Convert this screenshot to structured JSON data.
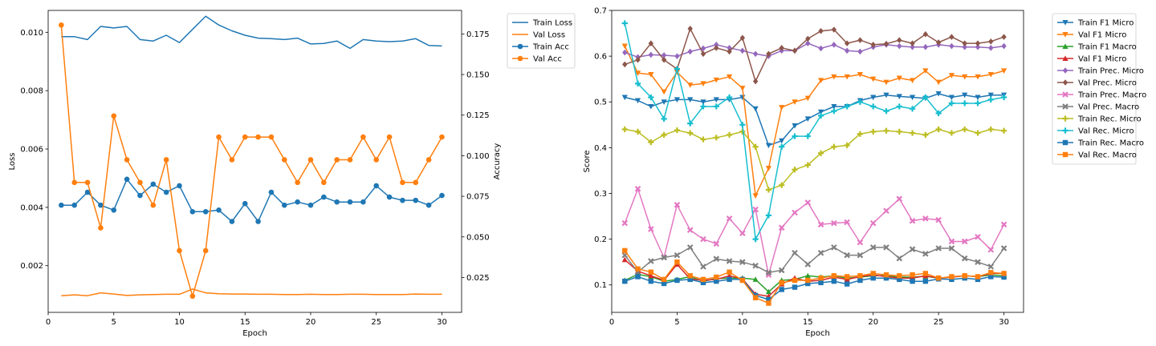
{
  "chart_data": [
    {
      "type": "line",
      "xlabel": "Epoch",
      "ylabel": "Loss",
      "y2label": "Accuracy",
      "x": [
        1,
        2,
        3,
        4,
        5,
        6,
        7,
        8,
        9,
        10,
        11,
        12,
        13,
        14,
        15,
        16,
        17,
        18,
        19,
        20,
        21,
        22,
        23,
        24,
        25,
        26,
        27,
        28,
        29,
        30
      ],
      "xlim": [
        0,
        31.5
      ],
      "xticks": [
        "0",
        "5",
        "10",
        "15",
        "20",
        "25",
        "30"
      ],
      "ylim": [
        0.0004,
        0.01075
      ],
      "yticks": [
        "0.002",
        "0.004",
        "0.006",
        "0.008",
        "0.010"
      ],
      "y2lim": [
        0.0035,
        0.1895
      ],
      "y2ticks": [
        "0.025",
        "0.050",
        "0.075",
        "0.100",
        "0.125",
        "0.150",
        "0.175"
      ],
      "legend_position": "outside-right",
      "series": [
        {
          "name": "Train Loss",
          "axis": "left",
          "color": "#1f77b4",
          "marker": "none",
          "values": [
            0.00985,
            0.00985,
            0.00975,
            0.0102,
            0.01015,
            0.0102,
            0.00975,
            0.0097,
            0.0099,
            0.00965,
            0.0101,
            0.01055,
            0.01025,
            0.01005,
            0.0099,
            0.0098,
            0.00978,
            0.00975,
            0.0098,
            0.0096,
            0.00962,
            0.0097,
            0.00945,
            0.00975,
            0.0097,
            0.00968,
            0.0097,
            0.00978,
            0.00955,
            0.00953
          ]
        },
        {
          "name": "Val Loss",
          "axis": "left",
          "color": "#ff7f0e",
          "marker": "none",
          "values": [
            0.00097,
            0.001,
            0.00097,
            0.00107,
            0.00103,
            0.00098,
            0.001,
            0.00101,
            0.00102,
            0.00102,
            0.0012,
            0.00107,
            0.00104,
            0.00103,
            0.00103,
            0.00102,
            0.00102,
            0.00101,
            0.00101,
            0.00102,
            0.00101,
            0.00101,
            0.00102,
            0.00102,
            0.00101,
            0.00101,
            0.00101,
            0.00103,
            0.00102,
            0.00102
          ]
        },
        {
          "name": "Train Acc",
          "axis": "right",
          "color": "#1f77b4",
          "marker": "circle",
          "values": [
            0.0695,
            0.0695,
            0.0775,
            0.0695,
            0.0665,
            0.0855,
            0.0755,
            0.0825,
            0.0775,
            0.0815,
            0.0655,
            0.0655,
            0.0665,
            0.0595,
            0.0705,
            0.0595,
            0.0775,
            0.0695,
            0.0715,
            0.0695,
            0.0745,
            0.0715,
            0.0715,
            0.0715,
            0.0815,
            0.0745,
            0.0725,
            0.0725,
            0.0695,
            0.0755
          ]
        },
        {
          "name": "Val Acc",
          "axis": "right",
          "color": "#ff7f0e",
          "marker": "circle",
          "values": [
            0.1805,
            0.0835,
            0.0835,
            0.0555,
            0.1245,
            0.0975,
            0.0835,
            0.0695,
            0.0975,
            0.0415,
            0.0135,
            0.0415,
            0.1115,
            0.0975,
            0.1115,
            0.1115,
            0.1115,
            0.0975,
            0.0835,
            0.0975,
            0.0835,
            0.0975,
            0.0975,
            0.1115,
            0.0975,
            0.1115,
            0.0835,
            0.0835,
            0.0975,
            0.1115
          ]
        }
      ]
    },
    {
      "type": "line",
      "xlabel": "Epoch",
      "ylabel": "Score",
      "x": [
        1,
        2,
        3,
        4,
        5,
        6,
        7,
        8,
        9,
        10,
        11,
        12,
        13,
        14,
        15,
        16,
        17,
        18,
        19,
        20,
        21,
        22,
        23,
        24,
        25,
        26,
        27,
        28,
        29,
        30
      ],
      "xlim": [
        0,
        31.5
      ],
      "xticks": [
        "0",
        "5",
        "10",
        "15",
        "20",
        "25",
        "30"
      ],
      "ylim": [
        0.04,
        0.7
      ],
      "yticks": [
        "0.1",
        "0.2",
        "0.3",
        "0.4",
        "0.5",
        "0.6",
        "0.7"
      ],
      "legend_position": "outside-right",
      "series": [
        {
          "name": "Train F1 Micro",
          "color": "#1f77b4",
          "marker": "triangle-down",
          "values": [
            0.51,
            0.503,
            0.49,
            0.5,
            0.505,
            0.505,
            0.5,
            0.505,
            0.505,
            0.51,
            0.485,
            0.405,
            0.415,
            0.448,
            0.463,
            0.478,
            0.49,
            0.49,
            0.503,
            0.51,
            0.515,
            0.512,
            0.51,
            0.508,
            0.518,
            0.51,
            0.515,
            0.51,
            0.515,
            0.515
          ]
        },
        {
          "name": "Val F1 Micro",
          "color": "#ff7f0e",
          "marker": "triangle-down",
          "values": [
            0.622,
            0.563,
            0.56,
            0.522,
            0.565,
            0.537,
            0.54,
            0.548,
            0.555,
            0.53,
            0.295,
            0.355,
            0.488,
            0.5,
            0.508,
            0.547,
            0.555,
            0.555,
            0.56,
            0.55,
            0.543,
            0.552,
            0.547,
            0.568,
            0.543,
            0.558,
            0.555,
            0.555,
            0.56,
            0.568
          ]
        },
        {
          "name": "Train F1 Macro",
          "color": "#2ca02c",
          "marker": "triangle-up",
          "values": [
            0.11,
            0.123,
            0.118,
            0.108,
            0.112,
            0.118,
            0.108,
            0.114,
            0.115,
            0.115,
            0.112,
            0.085,
            0.11,
            0.112,
            0.12,
            0.117,
            0.12,
            0.115,
            0.117,
            0.12,
            0.12,
            0.117,
            0.117,
            0.119,
            0.115,
            0.117,
            0.12,
            0.118,
            0.122,
            0.12
          ]
        },
        {
          "name": "Val F1 Micro",
          "color": "#d62728",
          "marker": "triangle-up",
          "values": [
            0.155,
            0.13,
            0.12,
            0.11,
            0.145,
            0.113,
            0.11,
            0.112,
            0.12,
            0.113,
            0.08,
            0.075,
            0.102,
            0.115,
            0.108,
            0.11,
            0.117,
            0.112,
            0.118,
            0.122,
            0.118,
            0.115,
            0.115,
            0.12,
            0.115,
            0.117,
            0.12,
            0.118,
            0.125,
            0.125
          ]
        },
        {
          "name": "Train Prec. Micro",
          "color": "#9467bd",
          "marker": "diamond",
          "values": [
            0.608,
            0.598,
            0.603,
            0.602,
            0.6,
            0.61,
            0.617,
            0.625,
            0.618,
            0.612,
            0.605,
            0.6,
            0.612,
            0.612,
            0.628,
            0.617,
            0.625,
            0.612,
            0.61,
            0.62,
            0.625,
            0.622,
            0.62,
            0.62,
            0.625,
            0.622,
            0.62,
            0.62,
            0.618,
            0.622
          ]
        },
        {
          "name": "Val Prec. Micro",
          "color": "#8c564b",
          "marker": "diamond",
          "values": [
            0.582,
            0.592,
            0.628,
            0.592,
            0.572,
            0.66,
            0.605,
            0.618,
            0.61,
            0.64,
            0.545,
            0.605,
            0.618,
            0.612,
            0.638,
            0.655,
            0.658,
            0.628,
            0.635,
            0.625,
            0.627,
            0.635,
            0.628,
            0.648,
            0.63,
            0.642,
            0.628,
            0.628,
            0.632,
            0.642
          ]
        },
        {
          "name": "Train Prec. Macro",
          "color": "#e377c2",
          "marker": "cross",
          "values": [
            0.235,
            0.31,
            0.222,
            0.16,
            0.275,
            0.22,
            0.2,
            0.19,
            0.245,
            0.213,
            0.265,
            0.122,
            0.225,
            0.258,
            0.28,
            0.232,
            0.235,
            0.237,
            0.193,
            0.235,
            0.262,
            0.288,
            0.24,
            0.245,
            0.242,
            0.195,
            0.195,
            0.205,
            0.177,
            0.232
          ]
        },
        {
          "name": "Val Prec. Macro",
          "color": "#7f7f7f",
          "marker": "cross",
          "values": [
            0.165,
            0.128,
            0.152,
            0.16,
            0.165,
            0.182,
            0.14,
            0.157,
            0.152,
            0.15,
            0.142,
            0.127,
            0.132,
            0.17,
            0.145,
            0.17,
            0.182,
            0.165,
            0.165,
            0.182,
            0.182,
            0.158,
            0.178,
            0.168,
            0.18,
            0.18,
            0.158,
            0.15,
            0.14,
            0.18
          ]
        },
        {
          "name": "Train Rec. Micro",
          "color": "#bcbd22",
          "marker": "plus",
          "values": [
            0.44,
            0.435,
            0.412,
            0.428,
            0.438,
            0.432,
            0.418,
            0.422,
            0.428,
            0.435,
            0.402,
            0.308,
            0.318,
            0.352,
            0.362,
            0.388,
            0.402,
            0.405,
            0.43,
            0.435,
            0.437,
            0.435,
            0.432,
            0.428,
            0.44,
            0.432,
            0.44,
            0.432,
            0.44,
            0.437
          ]
        },
        {
          "name": "Val Rec. Micro",
          "color": "#17becf",
          "marker": "plus",
          "values": [
            0.672,
            0.54,
            0.51,
            0.463,
            0.572,
            0.453,
            0.49,
            0.49,
            0.51,
            0.45,
            0.2,
            0.252,
            0.402,
            0.425,
            0.425,
            0.47,
            0.48,
            0.49,
            0.5,
            0.49,
            0.48,
            0.49,
            0.485,
            0.51,
            0.475,
            0.497,
            0.497,
            0.497,
            0.505,
            0.51
          ]
        },
        {
          "name": "Train Rec. Macro",
          "color": "#1f77b4",
          "marker": "square",
          "values": [
            0.108,
            0.118,
            0.108,
            0.103,
            0.11,
            0.112,
            0.105,
            0.108,
            0.112,
            0.112,
            0.077,
            0.068,
            0.09,
            0.095,
            0.103,
            0.105,
            0.108,
            0.102,
            0.11,
            0.115,
            0.115,
            0.112,
            0.108,
            0.108,
            0.113,
            0.112,
            0.115,
            0.112,
            0.118,
            0.117
          ]
        },
        {
          "name": "Val Rec. Macro",
          "color": "#ff7f0e",
          "marker": "square",
          "values": [
            0.175,
            0.135,
            0.128,
            0.112,
            0.15,
            0.12,
            0.112,
            0.117,
            0.128,
            0.11,
            0.072,
            0.06,
            0.105,
            0.11,
            0.11,
            0.115,
            0.12,
            0.118,
            0.12,
            0.125,
            0.122,
            0.12,
            0.122,
            0.125,
            0.115,
            0.118,
            0.12,
            0.118,
            0.127,
            0.125
          ]
        }
      ]
    }
  ]
}
